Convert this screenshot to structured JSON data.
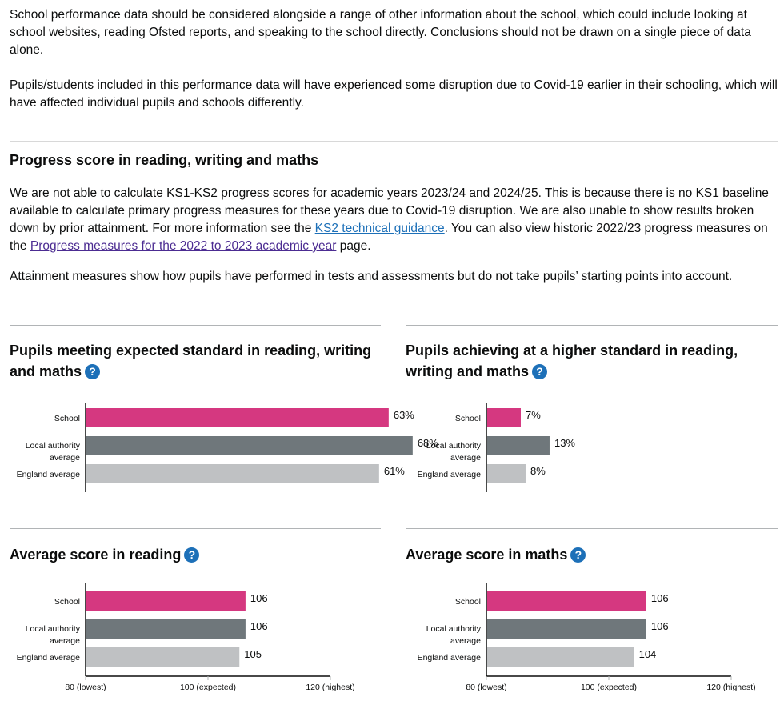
{
  "intro": {
    "p1": "School performance data should be considered alongside a range of other information about the school, which could include looking at school websites, reading Ofsted reports, and speaking to the school directly. Conclusions should not be drawn on a single piece of data alone.",
    "p2": "Pupils/students included in this performance data will have experienced some disruption due to Covid-19 earlier in their schooling, which will have affected individual pupils and schools differently."
  },
  "progress": {
    "heading": "Progress score in reading, writing and maths",
    "p1_a": "We are not able to calculate KS1-KS2 progress scores for academic years 2023/24 and 2024/25. This is because there is no KS1 baseline available to calculate primary progress measures for these years due to Covid-19 disruption. We are also unable to show results broken down by prior attainment. For more information see the ",
    "link1": "KS2 technical guidance",
    "p1_b": ". You can also view historic 2022/23 progress measures on the ",
    "link2": "Progress measures for the 2022 to 2023 academic year",
    "p1_c": " page.",
    "p2": "Attainment measures show how pupils have performed in tests and assessments but do not take pupils’ starting points into account."
  },
  "help_icon": "?",
  "colors": {
    "school": "#d53880",
    "la": "#6f777b",
    "england": "#bfc1c3",
    "link": "#1d70b8",
    "visited": "#4c2c92"
  },
  "chart_data": [
    {
      "type": "bar",
      "title": "Pupils meeting expected standard in reading, writing and maths",
      "categories": [
        "School",
        "Local authority average",
        "England average"
      ],
      "values": [
        63,
        68,
        61
      ],
      "labels": [
        "63%",
        "68%",
        "61%"
      ],
      "xlim": [
        0,
        100
      ],
      "show_axis": false,
      "ticks": []
    },
    {
      "type": "bar",
      "title": "Pupils achieving at a higher standard in reading, writing and maths",
      "categories": [
        "School",
        "Local authority average",
        "England average"
      ],
      "values": [
        7,
        13,
        8
      ],
      "labels": [
        "7%",
        "13%",
        "8%"
      ],
      "xlim": [
        0,
        100
      ],
      "show_axis": false,
      "ticks": []
    },
    {
      "type": "bar",
      "title": "Average score in reading",
      "categories": [
        "School",
        "Local authority average",
        "England average"
      ],
      "values": [
        106,
        106,
        105
      ],
      "labels": [
        "106",
        "106",
        "105"
      ],
      "xlim": [
        80,
        120
      ],
      "show_axis": true,
      "ticks": [
        {
          "value": 80,
          "label": "80 (lowest)"
        },
        {
          "value": 100,
          "label": "100 (expected)"
        },
        {
          "value": 120,
          "label": "120 (highest)"
        }
      ]
    },
    {
      "type": "bar",
      "title": "Average score in maths",
      "categories": [
        "School",
        "Local authority average",
        "England average"
      ],
      "values": [
        106,
        106,
        104
      ],
      "labels": [
        "106",
        "106",
        "104"
      ],
      "xlim": [
        80,
        120
      ],
      "show_axis": true,
      "ticks": [
        {
          "value": 80,
          "label": "80 (lowest)"
        },
        {
          "value": 100,
          "label": "100 (expected)"
        },
        {
          "value": 120,
          "label": "120 (highest)"
        }
      ]
    }
  ]
}
